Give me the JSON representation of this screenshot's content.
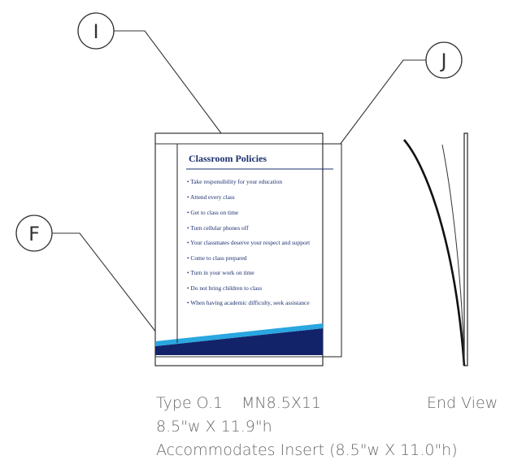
{
  "callouts": [
    {
      "letter": "I"
    },
    {
      "letter": "J"
    },
    {
      "letter": "F"
    }
  ],
  "insert": {
    "title": "Classroom Policies",
    "bullets": [
      "• Take responsibility for your education",
      "• Attend every class",
      "• Get to class on time",
      "• Turn cellular phones off",
      "• Your classmates deserve your respect and support",
      "• Come to class prepared",
      "• Turn in your work on time",
      "• Do not bring children to class",
      "• When having academic difficulty, seek assistance"
    ]
  },
  "captions": {
    "type": "Type O.1",
    "model": "MN8.5X11",
    "end_view": "End View",
    "size": "8.5\"w X 11.9\"h",
    "insert": "Accommodates Insert (8.5\"w X 11.0\"h)"
  },
  "colors": {
    "navy": "#13236a",
    "cyan": "#2aa6e0",
    "line": "#333333"
  }
}
